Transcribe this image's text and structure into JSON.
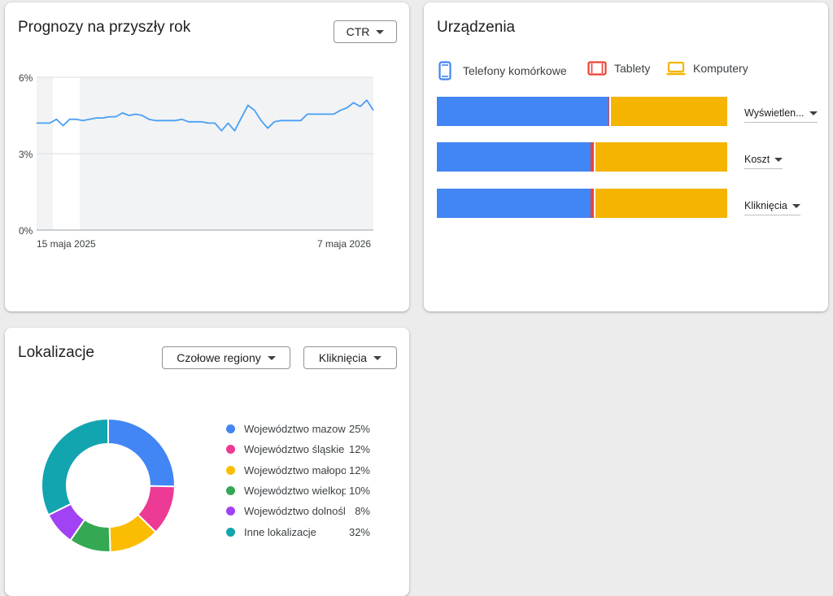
{
  "forecast": {
    "title": "Prognozy na przyszły rok",
    "metric_dropdown": "CTR",
    "y_ticks": [
      "6%",
      "3%",
      "0%"
    ],
    "x_ticks": [
      "15 maja 2025",
      "7 maja 2026"
    ]
  },
  "devices": {
    "title": "Urządzenia",
    "legend": [
      {
        "label": "Telefony komórkowe",
        "color": "#4285f4",
        "icon": "smartphone-icon"
      },
      {
        "label": "Tablety",
        "color": "#ea4335",
        "icon": "tablet-icon"
      },
      {
        "label": "Komputery",
        "color": "#f4b400",
        "icon": "laptop-icon"
      }
    ],
    "rows": [
      {
        "metric": "Wyświetlen...",
        "mobile": 0.59,
        "tablet": 0.005,
        "desktop": 0.405
      },
      {
        "metric": "Koszt",
        "mobile": 0.53,
        "tablet": 0.01,
        "desktop": 0.46
      },
      {
        "metric": "Kliknięcia",
        "mobile": 0.53,
        "tablet": 0.01,
        "desktop": 0.46
      }
    ]
  },
  "locations": {
    "title": "Lokalizacje",
    "region_dropdown": "Czołowe regiony",
    "metric_dropdown": "Kliknięcia",
    "items": [
      {
        "name": "Województwo mazowieckie",
        "pct": "25%",
        "value": 25,
        "color": "#4285f4"
      },
      {
        "name": "Województwo śląskie",
        "pct": "12%",
        "value": 12,
        "color": "#ec3a95"
      },
      {
        "name": "Województwo małopolskie",
        "pct": "12%",
        "value": 12,
        "color": "#fbbc04"
      },
      {
        "name": "Województwo wielkopolskie",
        "pct": "10%",
        "value": 10,
        "color": "#34a853"
      },
      {
        "name": "Województwo dolnośląskie",
        "pct": "8%",
        "value": 8,
        "color": "#a142f4"
      },
      {
        "name": "Inne lokalizacje",
        "pct": "32%",
        "value": 32,
        "color": "#12a4af"
      }
    ]
  },
  "chart_data": [
    {
      "type": "line",
      "title": "Prognozy na przyszły rok",
      "metric": "CTR",
      "ylim": [
        0,
        6
      ],
      "x_tick_labels": [
        "15 maja 2025",
        "7 maja 2026"
      ],
      "y_tick_labels": [
        "0%",
        "3%",
        "6%"
      ],
      "series": [
        {
          "values": [
            4.2,
            4.2,
            4.2,
            4.35,
            4.1,
            4.35,
            4.35,
            4.3,
            4.35,
            4.4,
            4.4,
            4.45,
            4.45,
            4.6,
            4.5,
            4.55,
            4.5,
            4.35,
            4.3,
            4.3,
            4.3,
            4.3,
            4.35,
            4.25,
            4.25,
            4.25,
            4.2,
            4.2,
            3.9,
            4.2,
            3.9,
            4.4,
            4.9,
            4.7,
            4.3,
            4.0,
            4.25,
            4.3,
            4.3,
            4.3,
            4.3,
            4.55,
            4.55,
            4.55,
            4.55,
            4.55,
            4.7,
            4.8,
            5.0,
            4.85,
            5.1,
            4.7
          ]
        }
      ],
      "grid": true
    },
    {
      "type": "bar",
      "orientation": "horizontal-stacked-100",
      "title": "Urządzenia",
      "categories": [
        "Wyświetlen...",
        "Koszt",
        "Kliknięcia"
      ],
      "series": [
        {
          "name": "Telefony komórkowe",
          "values": [
            0.59,
            0.53,
            0.53
          ]
        },
        {
          "name": "Tablety",
          "values": [
            0.005,
            0.01,
            0.01
          ]
        },
        {
          "name": "Komputery",
          "values": [
            0.405,
            0.46,
            0.46
          ]
        }
      ]
    },
    {
      "type": "pie",
      "variant": "donut",
      "title": "Lokalizacje",
      "categories": [
        "Województwo mazowieckie",
        "Województwo śląskie",
        "Województwo małopolskie",
        "Województwo wielkopolskie",
        "Województwo dolnośląskie",
        "Inne lokalizacje"
      ],
      "values": [
        25,
        12,
        12,
        10,
        8,
        32
      ]
    }
  ]
}
